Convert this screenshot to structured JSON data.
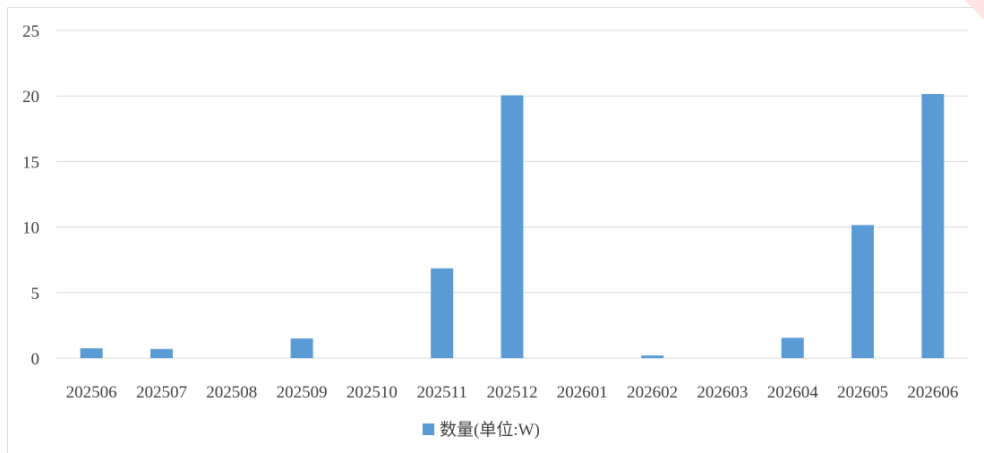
{
  "chart_data": {
    "type": "bar",
    "categories": [
      "202506",
      "202507",
      "202508",
      "202509",
      "202510",
      "202511",
      "202512",
      "202601",
      "202602",
      "202603",
      "202604",
      "202605",
      "202606"
    ],
    "series": [
      {
        "name": "数量(单位:W)",
        "color": "#5B9BD5",
        "values": [
          0.75,
          0.7,
          0,
          1.5,
          0,
          6.85,
          20.05,
          0,
          0.2,
          0,
          1.55,
          10.15,
          20.15
        ]
      }
    ],
    "yticks": [
      "0",
      "5",
      "10",
      "15",
      "20",
      "25"
    ],
    "ylim": [
      0,
      25
    ],
    "grid": true,
    "legend": "bottom",
    "title": "",
    "xlabel": "",
    "ylabel": ""
  }
}
